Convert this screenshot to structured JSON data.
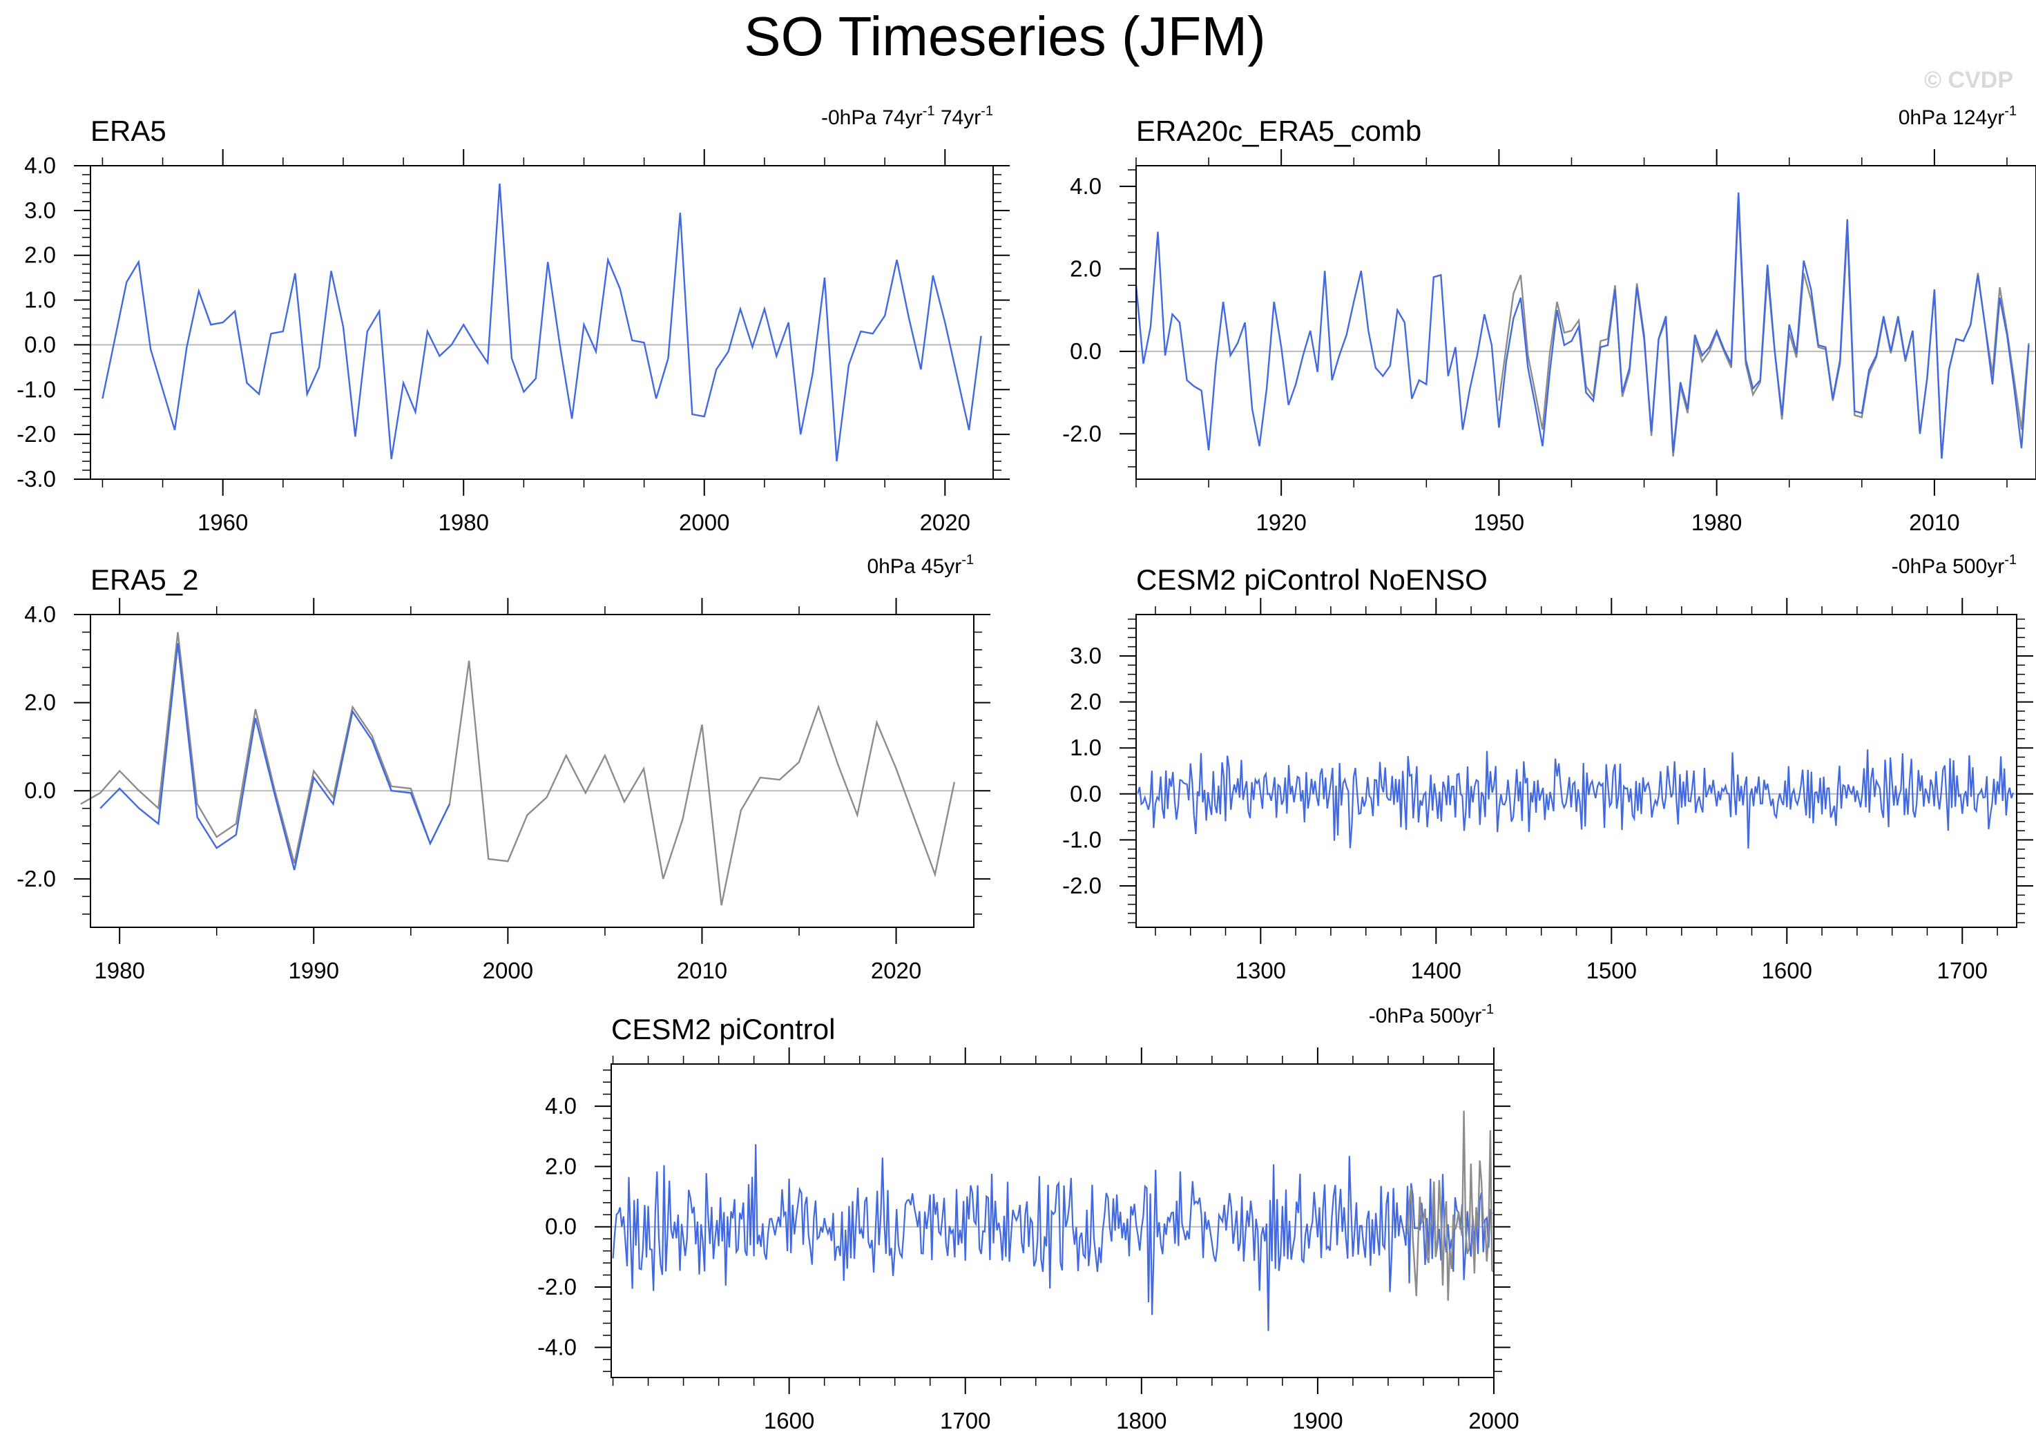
{
  "figure": {
    "title": "SO Timeseries (JFM)",
    "watermark": "© CVDP"
  },
  "colors": {
    "primary_line": "#4169E1",
    "secondary_line": "#8c8c8c",
    "zero_line": "#bbbbbb",
    "axis": "#000000",
    "watermark": "#d9d9d9"
  },
  "chart_data": [
    {
      "type": "line",
      "title": "ERA5",
      "annotation": "-0hPa 74yr",
      "annotation_sup": "-1",
      "annotation2": " 74yr",
      "annotation2_sup": "-1",
      "xlim": [
        1949,
        2024
      ],
      "ylim": [
        -3.0,
        4.0
      ],
      "yticks": [
        -3.0,
        -2.0,
        -1.0,
        0.0,
        1.0,
        2.0,
        3.0,
        4.0
      ],
      "ytick_labels": [
        "-3.0",
        "-2.0",
        "-1.0",
        "0.0",
        "1.0",
        "2.0",
        "3.0",
        "4.0"
      ],
      "xticks": [
        1960,
        1980,
        2000,
        2020
      ],
      "xtick_labels": [
        "1960",
        "1980",
        "2000",
        "2020"
      ],
      "xminor": 5,
      "series": [
        {
          "name": "ERA5",
          "color": "primary",
          "x_start": 1950,
          "values": [
            -1.2,
            0.1,
            1.4,
            1.85,
            -0.1,
            -1.0,
            -1.9,
            -0.05,
            1.2,
            0.45,
            0.5,
            0.75,
            -0.85,
            -1.1,
            0.25,
            0.3,
            1.6,
            -1.1,
            -0.5,
            1.65,
            0.4,
            -2.05,
            0.3,
            0.75,
            -2.55,
            -0.85,
            -1.5,
            0.3,
            -0.25,
            0.0,
            0.45,
            0.0,
            -0.4,
            3.6,
            -0.3,
            -1.05,
            -0.75,
            1.85,
            0.0,
            -1.65,
            0.45,
            -0.15,
            1.9,
            1.25,
            0.1,
            0.05,
            -1.2,
            -0.3,
            2.95,
            -1.55,
            -1.6,
            -0.55,
            -0.15,
            0.8,
            -0.05,
            0.8,
            -0.25,
            0.5,
            -2.0,
            -0.65,
            1.5,
            -2.6,
            -0.45,
            0.3,
            0.25,
            0.65,
            1.9,
            0.6,
            -0.55,
            1.55,
            0.5,
            -0.7,
            -1.9,
            0.2
          ]
        }
      ]
    },
    {
      "type": "line",
      "title": "ERA20c_ERA5_comb",
      "annotation": "0hPa 124yr",
      "annotation_sup": "-1",
      "xlim": [
        1900,
        2024
      ],
      "ylim": [
        -3.1,
        4.5
      ],
      "yticks": [
        -2.0,
        0.0,
        2.0,
        4.0
      ],
      "ytick_labels": [
        "-2.0",
        "0.0",
        "2.0",
        "4.0"
      ],
      "xticks": [
        1920,
        1950,
        1980,
        2010
      ],
      "xtick_labels": [
        "1920",
        "1950",
        "1980",
        "2010"
      ],
      "xminor": 10,
      "series": [
        {
          "name": "ERA5",
          "color": "secondary",
          "x_start": 1950,
          "values": [
            -1.2,
            0.1,
            1.4,
            1.85,
            -0.1,
            -1.0,
            -1.9,
            -0.05,
            1.2,
            0.45,
            0.5,
            0.75,
            -0.85,
            -1.1,
            0.25,
            0.3,
            1.6,
            -1.1,
            -0.5,
            1.65,
            0.4,
            -2.05,
            0.3,
            0.75,
            -2.55,
            -0.85,
            -1.5,
            0.3,
            -0.25,
            0.0,
            0.45,
            0.0,
            -0.4,
            3.6,
            -0.3,
            -1.05,
            -0.75,
            1.85,
            0.0,
            -1.65,
            0.45,
            -0.15,
            1.9,
            1.25,
            0.1,
            0.05,
            -1.2,
            -0.3,
            2.95,
            -1.55,
            -1.6,
            -0.55,
            -0.15,
            0.8,
            -0.05,
            0.8,
            -0.25,
            0.5,
            -2.0,
            -0.65,
            1.5,
            -2.6,
            -0.45,
            0.3,
            0.25,
            0.65,
            1.9,
            0.6,
            -0.55,
            1.55,
            0.5,
            -0.7,
            -1.9,
            0.2
          ]
        },
        {
          "name": "ERA20c_ERA5_comb",
          "color": "primary",
          "x_start": 1900,
          "values": [
            1.6,
            -0.3,
            0.6,
            2.9,
            -0.1,
            0.9,
            0.7,
            -0.7,
            -0.85,
            -0.95,
            -2.4,
            -0.3,
            1.2,
            -0.1,
            0.2,
            0.7,
            -1.4,
            -2.3,
            -0.9,
            1.2,
            0.1,
            -1.3,
            -0.8,
            -0.1,
            0.5,
            -0.5,
            1.95,
            -0.7,
            -0.1,
            0.4,
            1.2,
            1.95,
            0.5,
            -0.4,
            -0.6,
            -0.35,
            1.0,
            0.7,
            -1.15,
            -0.7,
            -0.8,
            1.8,
            1.85,
            -0.6,
            0.1,
            -1.9,
            -0.9,
            -0.1,
            0.9,
            0.15,
            -1.85,
            -0.25,
            0.8,
            1.3,
            -0.4,
            -1.3,
            -2.3,
            -0.5,
            1.0,
            0.15,
            0.25,
            0.6,
            -1.0,
            -1.2,
            0.1,
            0.15,
            1.5,
            -1.0,
            -0.4,
            1.55,
            0.3,
            -1.95,
            0.3,
            0.85,
            -2.45,
            -0.75,
            -1.4,
            0.4,
            -0.1,
            0.1,
            0.5,
            0.05,
            -0.3,
            3.85,
            -0.2,
            -0.9,
            -0.7,
            2.1,
            0.0,
            -1.55,
            0.65,
            -0.05,
            2.2,
            1.5,
            0.15,
            0.1,
            -1.15,
            -0.2,
            3.2,
            -1.45,
            -1.5,
            -0.45,
            -0.1,
            0.85,
            0.0,
            0.85,
            -0.2,
            0.5,
            -2.0,
            -0.65,
            1.5,
            -2.6,
            -0.45,
            0.3,
            0.25,
            0.65,
            1.85,
            0.6,
            -0.8,
            1.3,
            0.4,
            -0.9,
            -2.35,
            0.15
          ]
        }
      ]
    },
    {
      "type": "line",
      "title": "ERA5_2",
      "annotation": "0hPa 45yr",
      "annotation_sup": "-1",
      "xlim": [
        1978.5,
        2024.0
      ],
      "ylim": [
        -3.1,
        4.0
      ],
      "yticks": [
        -2.0,
        0.0,
        2.0,
        4.0
      ],
      "ytick_labels": [
        "-2.0",
        "0.0",
        "2.0",
        "4.0"
      ],
      "xticks": [
        1980,
        1990,
        2000,
        2010,
        2020
      ],
      "xtick_labels": [
        "1980",
        "1990",
        "2000",
        "2010",
        "2020"
      ],
      "xminor": 5,
      "series": [
        {
          "name": "ERA5",
          "color": "secondary",
          "x_start": 1978,
          "values": [
            -0.3,
            -0.05,
            0.45,
            0.0,
            -0.4,
            3.6,
            -0.3,
            -1.05,
            -0.75,
            1.85,
            0.0,
            -1.65,
            0.45,
            -0.15,
            1.9,
            1.25,
            0.1,
            0.05,
            -1.2,
            -0.3,
            2.95,
            -1.55,
            -1.6,
            -0.55,
            -0.15,
            0.8,
            -0.05,
            0.8,
            -0.25,
            0.5,
            -2.0,
            -0.65,
            1.5,
            -2.6,
            -0.45,
            0.3,
            0.25,
            0.65,
            1.9,
            0.6,
            -0.55,
            1.55,
            0.5,
            -0.7,
            -1.9,
            0.2
          ]
        },
        {
          "name": "ERA5_2",
          "color": "primary",
          "x_start": 1979,
          "values": [
            -0.4,
            0.05,
            -0.4,
            -0.75,
            3.35,
            -0.6,
            -1.3,
            -1.0,
            1.65,
            -0.1,
            -1.8,
            0.3,
            -0.3,
            1.8,
            1.15,
            0.0,
            -0.05,
            -1.2,
            -0.3
          ]
        }
      ]
    },
    {
      "type": "line",
      "title": "CESM2 piControl NoENSO",
      "annotation": "-0hPa 500yr",
      "annotation_sup": "-1",
      "xlim": [
        1229,
        1731
      ],
      "ylim": [
        -2.9,
        3.9
      ],
      "yticks": [
        -2.0,
        -1.0,
        0.0,
        1.0,
        2.0,
        3.0
      ],
      "ytick_labels": [
        "-2.0",
        "-1.0",
        "0.0",
        "1.0",
        "2.0",
        "3.0"
      ],
      "xticks": [
        1300,
        1400,
        1500,
        1600,
        1700
      ],
      "xtick_labels": [
        "1300",
        "1400",
        "1500",
        "1600",
        "1700"
      ],
      "xminor": 20,
      "series": [
        {
          "name": "CESM2 piControl NoENSO",
          "color": "primary",
          "x_start": 1230,
          "n": 500,
          "amp": 0.55,
          "seed": 17,
          "values": []
        }
      ]
    },
    {
      "type": "line",
      "title": "CESM2 piControl",
      "annotation": "-0hPa 500yr",
      "annotation_sup": "-1",
      "xlim": [
        1499,
        2000
      ],
      "ylim": [
        -5.0,
        5.4
      ],
      "yticks": [
        -4.0,
        -2.0,
        0.0,
        2.0,
        4.0
      ],
      "ytick_labels": [
        "-4.0",
        "-2.0",
        "0.0",
        "2.0",
        "4.0"
      ],
      "xticks": [
        1600,
        1700,
        1800,
        1900,
        2000
      ],
      "xtick_labels": [
        "1600",
        "1700",
        "1800",
        "1900",
        "2000"
      ],
      "xminor": 20,
      "series": [
        {
          "name": "CESM2 piControl",
          "color": "primary",
          "x_start": 1500,
          "n": 500,
          "amp": 1.45,
          "seed": 91,
          "values": []
        },
        {
          "name": "ERA20c_ERA5_comb",
          "color": "secondary",
          "x_start": 1951,
          "values": [
            -0.25,
            0.8,
            1.3,
            -0.4,
            -1.3,
            -2.3,
            -0.5,
            1.0,
            0.15,
            0.25,
            0.6,
            -1.0,
            -1.2,
            0.1,
            0.15,
            1.5,
            -1.0,
            -0.4,
            1.55,
            0.3,
            -1.95,
            0.3,
            0.85,
            -2.45,
            -0.75,
            -1.4,
            0.4,
            -0.1,
            0.1,
            0.5,
            0.05,
            -0.3,
            3.85,
            -0.2,
            -0.9,
            -0.7,
            2.1,
            0.0,
            -1.55,
            0.65,
            -0.05,
            2.2,
            1.5,
            0.15,
            0.1,
            -1.15,
            -0.2,
            3.2,
            -1.45,
            -1.5
          ]
        }
      ]
    }
  ]
}
